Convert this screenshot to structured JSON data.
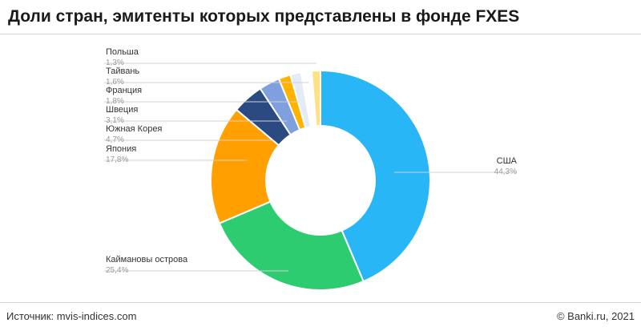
{
  "title": "Доли стран, эмитенты которых представлены в фонде FXES",
  "footer": {
    "source": "Источник: mvis-indices.com",
    "copyright": "© Banki.ru, 2021"
  },
  "chart_data": {
    "type": "pie",
    "donut": true,
    "slices": [
      {
        "label": "США",
        "value": 44.3,
        "value_text": "44,3%",
        "color": "#29b6f6"
      },
      {
        "label": "Каймановы острова",
        "value": 25.4,
        "value_text": "25,4%",
        "color": "#2ecc71"
      },
      {
        "label": "Япония",
        "value": 17.8,
        "value_text": "17,8%",
        "color": "#ffa000"
      },
      {
        "label": "Южная Корея",
        "value": 4.7,
        "value_text": "4,7%",
        "color": "#2c4a82"
      },
      {
        "label": "Швеция",
        "value": 3.1,
        "value_text": "3,1%",
        "color": "#7f9fde"
      },
      {
        "label": "Франция",
        "value": 1.8,
        "value_text": "1,8%",
        "color": "#ffb300"
      },
      {
        "label": "",
        "value": 1.6,
        "value_text": "",
        "color": "#e3ecf6"
      },
      {
        "label": "Тайвань",
        "value": 1.6,
        "value_text": "1,6%",
        "color": "#ffffff"
      },
      {
        "label": "Польша",
        "value": 1.3,
        "value_text": "1,3%",
        "color": "#ffe082"
      }
    ],
    "legend": "callouts"
  }
}
